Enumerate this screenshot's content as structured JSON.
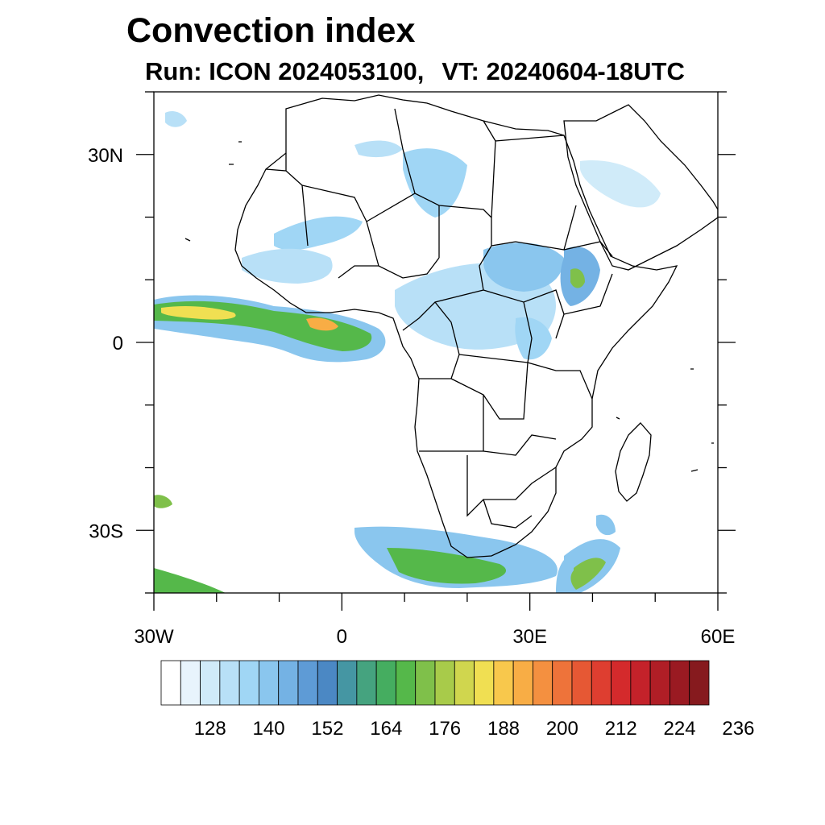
{
  "title": "Convection index",
  "subtitle": {
    "run": "Run: ICON 2024053100,",
    "valid_time": "VT: 20240604-18UTC"
  },
  "map": {
    "lon_range": [
      -30,
      60
    ],
    "lat_range": [
      -40,
      40
    ],
    "lon_ticks": [
      {
        "value": -30,
        "label": "30W"
      },
      {
        "value": 0,
        "label": "0"
      },
      {
        "value": 30,
        "label": "30E"
      },
      {
        "value": 60,
        "label": "60E"
      }
    ],
    "lat_ticks": [
      {
        "value": 30,
        "label": "30N"
      },
      {
        "value": 0,
        "label": "0"
      },
      {
        "value": -30,
        "label": "30S"
      }
    ]
  },
  "colorbar": {
    "colors": [
      "#ffffff",
      "#e8f4fc",
      "#d0ebf9",
      "#b8e0f7",
      "#a0d6f5",
      "#8ac6ee",
      "#74b2e4",
      "#5e9bd6",
      "#4b88c4",
      "#4596a3",
      "#45a37f",
      "#45ad60",
      "#55b84a",
      "#7fc04a",
      "#a8cb4a",
      "#d0d64e",
      "#f0df52",
      "#f8c84c",
      "#f8ad45",
      "#f49040",
      "#ee733a",
      "#e65834",
      "#de3e30",
      "#d42a2c",
      "#c4222a",
      "#b01e26",
      "#9a1a22",
      "#861a1e"
    ],
    "labels": [
      "128",
      "140",
      "152",
      "164",
      "176",
      "188",
      "200",
      "212",
      "224",
      "236"
    ]
  },
  "icons": {
    "coastline": "coastline-layer",
    "convection": "convection-field-layer"
  }
}
